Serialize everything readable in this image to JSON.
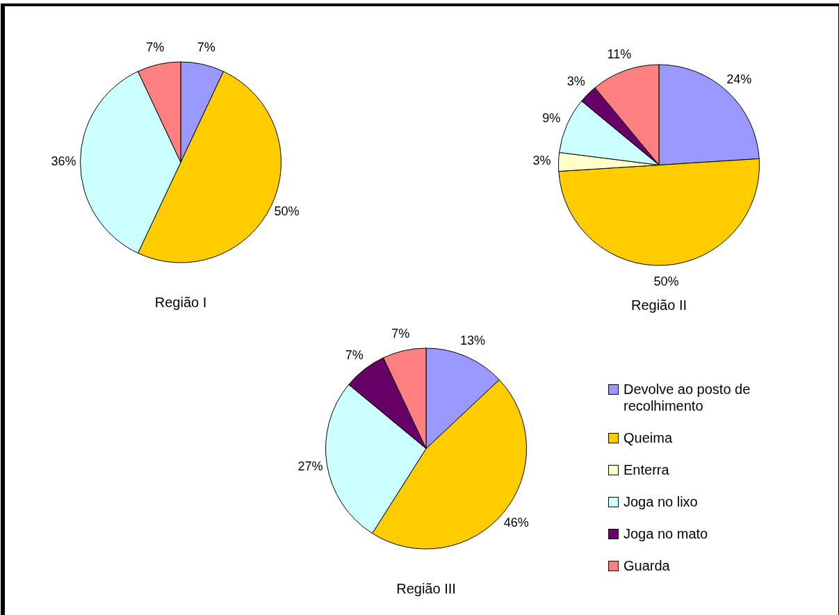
{
  "chart_data": {
    "type": "pie",
    "categories": [
      "Devolve ao posto de recolhimento",
      "Queima",
      "Enterra",
      "Joga no lixo",
      "Joga no mato",
      "Guarda"
    ],
    "colors": [
      "#9999ff",
      "#ffcc00",
      "#ffffcc",
      "#ccffff",
      "#660066",
      "#ff8080"
    ],
    "legend": "bottom right",
    "series": [
      {
        "name": "Região I",
        "values": [
          7,
          50,
          null,
          36,
          null,
          7
        ],
        "value_labels": [
          "7%",
          "50%",
          null,
          "36%",
          null,
          "7%"
        ]
      },
      {
        "name": "Região II",
        "values": [
          24,
          50,
          3,
          9,
          3,
          11
        ],
        "value_labels": [
          "24%",
          "50%",
          "3%",
          "9%",
          "3%",
          "11%"
        ]
      },
      {
        "name": "Região III",
        "values": [
          13,
          46,
          null,
          27,
          7,
          7
        ],
        "value_labels": [
          "13%",
          "46%",
          null,
          "27%",
          "7%",
          "7%"
        ]
      }
    ]
  }
}
